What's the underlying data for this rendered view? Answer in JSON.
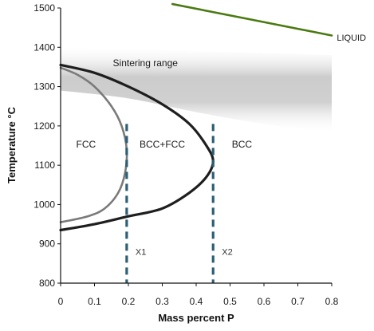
{
  "chart_data": {
    "type": "line",
    "title": "",
    "xlabel": "Mass percent P",
    "ylabel": "Temperature °C",
    "xlim": [
      0,
      0.8
    ],
    "ylim": [
      800,
      1500
    ],
    "x_ticks": [
      0,
      0.1,
      0.2,
      0.3,
      0.4,
      0.5,
      0.6,
      0.7,
      0.8
    ],
    "x_tick_labels": [
      "0",
      "0.1",
      "0.2",
      "0.3",
      "0.4",
      "0.5",
      "0.6",
      "0.7",
      "0.8"
    ],
    "y_ticks": [
      800,
      900,
      1000,
      1100,
      1200,
      1300,
      1400,
      1500
    ],
    "y_tick_labels": [
      "800",
      "900",
      "1000",
      "1100",
      "1200",
      "1300",
      "1400",
      "1500"
    ],
    "grid": false,
    "colors": {
      "outer_boundary": "#1e1e1e",
      "inner_boundary": "#7a7a7a",
      "liquidus": "#4a7a12",
      "markers": "#2b5f75",
      "sintering_band": "#c8c8c8"
    },
    "series": [
      {
        "key": "outer",
        "x": [
          0,
          0.1,
          0.2,
          0.3,
          0.38,
          0.43,
          0.45,
          0.43,
          0.38,
          0.3,
          0.2,
          0.1,
          0
        ],
        "y": [
          1355,
          1335,
          1300,
          1255,
          1205,
          1150,
          1110,
          1070,
          1030,
          990,
          970,
          950,
          935
        ]
      },
      {
        "key": "inner",
        "x": [
          0,
          0.05,
          0.1,
          0.15,
          0.18,
          0.195,
          0.19,
          0.17,
          0.13,
          0.08,
          0
        ],
        "y": [
          1348,
          1330,
          1300,
          1250,
          1200,
          1140,
          1080,
          1030,
          990,
          970,
          955
        ]
      },
      {
        "key": "liquidus",
        "x": [
          0.33,
          0.8
        ],
        "y": [
          1510,
          1430
        ]
      }
    ],
    "vertical_markers": [
      {
        "label": "X1",
        "x": 0.195,
        "y_top": 1205,
        "y_bottom": 800,
        "label_y": 880
      },
      {
        "label": "X2",
        "x": 0.45,
        "y_top": 1205,
        "y_bottom": 800,
        "label_y": 880
      }
    ],
    "band": {
      "label": "Sintering range",
      "upper": {
        "x": [
          0,
          0.2,
          0.4,
          0.6,
          0.8
        ],
        "y": [
          1400,
          1395,
          1390,
          1385,
          1380
        ]
      },
      "lower": {
        "x": [
          0,
          0.2,
          0.4,
          0.6,
          0.8
        ],
        "y": [
          1290,
          1270,
          1235,
          1205,
          1185
        ]
      },
      "label_x": 0.25,
      "label_y": 1352
    },
    "region_labels": [
      {
        "text": "FCC",
        "x": 0.075,
        "y": 1145
      },
      {
        "text": "BCC+FCC",
        "x": 0.3,
        "y": 1145
      },
      {
        "text": "BCC",
        "x": 0.535,
        "y": 1145
      }
    ],
    "liquid_label": {
      "text": "LIQUID",
      "x": 0.815,
      "y": 1425
    }
  }
}
